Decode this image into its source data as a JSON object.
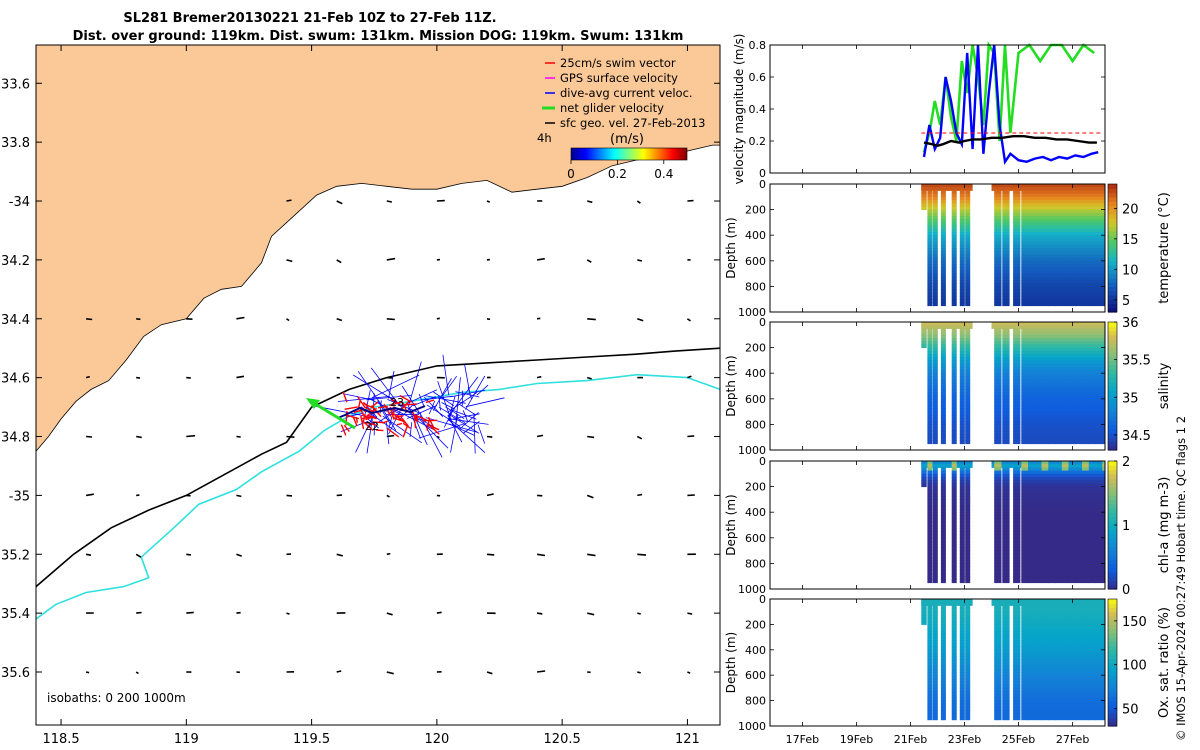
{
  "title_line1": "SL281 Bremer20130221 21-Feb 10Z to 27-Feb 11Z.",
  "title_line2": "Dist. over ground: 119km. Dist. swum: 131km. Mission DOG: 119km. Swum: 131km",
  "copyright": "© IMOS 15-Apr-2024 00:27:49 Hobart time. QC flags 1  2",
  "colors": {
    "land": "#FBC998",
    "isobath_200": "#000000",
    "isobath_1000": "#30E0E0",
    "swim_vector": "#FF0000",
    "gps_velocity": "#FF00FF",
    "dive_avg_current": "#0000FF",
    "net_glider_velocity": "#22DD22",
    "sfc_geo_vel": "#000000"
  },
  "chart_data": [
    {
      "type": "map",
      "xlim": [
        118.4,
        121.13
      ],
      "ylim": [
        35.78,
        33.47
      ],
      "x_ticks": [
        118.5,
        119,
        119.5,
        120,
        120.5,
        121
      ],
      "x_tick_labels": [
        "118.5",
        "119",
        "119.5",
        "120",
        "120.5",
        "121"
      ],
      "y_ticks": [
        33.6,
        33.8,
        34,
        34.2,
        34.4,
        34.6,
        34.8,
        35,
        35.2,
        35.4,
        35.6
      ],
      "y_tick_labels": [
        "33.6",
        "33.8",
        "-34",
        "34.2",
        "34.4",
        "34.6",
        "34.8",
        "-35",
        "35.2",
        "35.4",
        "35.6"
      ],
      "legend": {
        "placement": "top-right",
        "entries": [
          "25cm/s swim vector",
          "GPS surface velocity",
          "dive-avg current veloc.",
          "net glider velocity",
          "sfc geo. vel. 27-Feb-2013"
        ],
        "time_label": "4h",
        "colorbar_title": "(m/s)",
        "colorbar_ticks": [
          0,
          0.2,
          0.4
        ],
        "colorbar_tick_labels": [
          "0",
          "0.2",
          "0.4"
        ],
        "colorbar_range": [
          0,
          0.5
        ]
      },
      "isobath_label": "isobaths: 0   200   1000m",
      "glider_labels": [
        "23",
        "22"
      ],
      "coastline": [
        [
          118.4,
          34.85
        ],
        [
          118.45,
          34.8
        ],
        [
          118.5,
          34.74
        ],
        [
          118.56,
          34.68
        ],
        [
          118.62,
          34.64
        ],
        [
          118.69,
          34.61
        ],
        [
          118.76,
          34.54
        ],
        [
          118.83,
          34.46
        ],
        [
          118.9,
          34.42
        ],
        [
          119.0,
          34.4
        ],
        [
          119.07,
          34.33
        ],
        [
          119.14,
          34.3
        ],
        [
          119.22,
          34.29
        ],
        [
          119.3,
          34.21
        ],
        [
          119.34,
          34.12
        ],
        [
          119.43,
          34.05
        ],
        [
          119.52,
          33.98
        ],
        [
          119.6,
          33.95
        ],
        [
          119.7,
          33.94
        ],
        [
          119.8,
          33.95
        ],
        [
          119.9,
          33.96
        ],
        [
          120.0,
          33.96
        ],
        [
          120.1,
          33.94
        ],
        [
          120.2,
          33.93
        ],
        [
          120.3,
          33.97
        ],
        [
          120.4,
          33.96
        ],
        [
          120.5,
          33.95
        ],
        [
          120.6,
          33.92
        ],
        [
          120.7,
          33.88
        ],
        [
          120.8,
          33.86
        ],
        [
          120.9,
          33.85
        ],
        [
          121.0,
          33.83
        ],
        [
          121.1,
          33.81
        ],
        [
          121.13,
          33.81
        ]
      ],
      "isobath_200": [
        [
          118.4,
          35.31
        ],
        [
          118.55,
          35.2
        ],
        [
          118.7,
          35.11
        ],
        [
          118.85,
          35.05
        ],
        [
          119.0,
          35.0
        ],
        [
          119.15,
          34.93
        ],
        [
          119.3,
          34.86
        ],
        [
          119.4,
          34.82
        ],
        [
          119.5,
          34.7
        ],
        [
          119.65,
          34.64
        ],
        [
          119.8,
          34.6
        ],
        [
          120.0,
          34.56
        ],
        [
          120.2,
          34.55
        ],
        [
          120.4,
          34.54
        ],
        [
          120.6,
          34.53
        ],
        [
          120.8,
          34.52
        ],
        [
          120.95,
          34.51
        ],
        [
          121.13,
          34.5
        ]
      ],
      "isobath_1000": [
        [
          118.4,
          35.42
        ],
        [
          118.48,
          35.37
        ],
        [
          118.6,
          35.33
        ],
        [
          118.75,
          35.31
        ],
        [
          118.85,
          35.28
        ],
        [
          118.82,
          35.21
        ],
        [
          118.95,
          35.11
        ],
        [
          119.05,
          35.03
        ],
        [
          119.2,
          34.98
        ],
        [
          119.3,
          34.92
        ],
        [
          119.45,
          34.85
        ],
        [
          119.55,
          34.78
        ],
        [
          119.65,
          34.73
        ],
        [
          119.75,
          34.7
        ],
        [
          119.9,
          34.68
        ],
        [
          120.1,
          34.65
        ],
        [
          120.25,
          34.64
        ],
        [
          120.4,
          34.62
        ],
        [
          120.6,
          34.61
        ],
        [
          120.8,
          34.59
        ],
        [
          121.0,
          34.6
        ],
        [
          121.13,
          34.64
        ]
      ]
    },
    {
      "type": "line",
      "ylabel": "velocity magnitude (m/s)",
      "ylim": [
        0,
        0.8
      ],
      "y_ticks": [
        0,
        0.2,
        0.4,
        0.6,
        0.8
      ],
      "y_tick_labels": [
        "0",
        "0.2",
        "0.4",
        "0.6",
        "0.8"
      ],
      "series": [
        {
          "x": [
            21.5,
            21.8,
            22.0,
            22.2,
            22.5,
            22.8,
            23.0,
            23.3,
            23.6,
            24.0,
            24.4,
            24.8,
            25.2,
            25.6,
            26.0,
            26.4,
            26.8,
            27.2,
            27.6,
            27.9
          ],
          "values": [
            0.19,
            0.18,
            0.17,
            0.18,
            0.2,
            0.19,
            0.2,
            0.21,
            0.21,
            0.22,
            0.22,
            0.23,
            0.23,
            0.22,
            0.22,
            0.21,
            0.21,
            0.2,
            0.19,
            0.19
          ]
        },
        {
          "x": [
            21.5,
            21.7,
            21.9,
            22.1,
            22.3,
            22.5,
            22.7,
            22.9,
            23.1,
            23.3,
            23.5,
            23.7,
            23.9,
            24.1,
            24.3,
            24.5,
            24.7,
            25.0,
            25.4,
            25.8,
            26.2,
            26.6,
            27.0,
            27.4,
            27.8
          ],
          "values": [
            0.13,
            0.25,
            0.45,
            0.3,
            0.6,
            0.35,
            0.2,
            0.7,
            0.5,
            0.8,
            0.6,
            0.3,
            0.8,
            0.75,
            0.2,
            0.8,
            0.25,
            0.75,
            0.8,
            0.7,
            0.8,
            0.8,
            0.7,
            0.8,
            0.75
          ]
        },
        {
          "x": [
            21.5,
            21.7,
            21.9,
            22.1,
            22.3,
            22.5,
            22.7,
            22.9,
            23.1,
            23.3,
            23.5,
            23.7,
            23.9,
            24.1,
            24.3,
            24.5,
            24.7,
            25.0,
            25.3,
            25.6,
            25.9,
            26.2,
            26.5,
            26.8,
            27.1,
            27.4,
            27.7,
            27.95
          ],
          "values": [
            0.1,
            0.3,
            0.15,
            0.22,
            0.6,
            0.45,
            0.25,
            0.18,
            0.75,
            0.15,
            0.8,
            0.12,
            0.5,
            0.8,
            0.3,
            0.07,
            0.12,
            0.08,
            0.07,
            0.09,
            0.1,
            0.08,
            0.1,
            0.09,
            0.11,
            0.1,
            0.12,
            0.13
          ]
        }
      ]
    },
    {
      "type": "heatmap",
      "ylabel": "Depth (m)",
      "colorbar_label": "temperature (°C)",
      "ylim": [
        0,
        1000
      ],
      "y_ticks": [
        0,
        200,
        400,
        600,
        800,
        1000
      ],
      "y_tick_labels": [
        "0",
        "200",
        "400",
        "600",
        "800",
        "1000"
      ],
      "colorbar_range": [
        3,
        24
      ],
      "colorbar_ticks": [
        5,
        10,
        15,
        20
      ],
      "colorbar_tick_labels": [
        "5",
        "10",
        "15",
        "20"
      ],
      "profile": {
        "depth": [
          0,
          100,
          200,
          300,
          400,
          600,
          800,
          1000
        ],
        "values": [
          23,
          21,
          17,
          14,
          11,
          8,
          6,
          5
        ]
      }
    },
    {
      "type": "heatmap",
      "ylabel": "Depth (m)",
      "colorbar_label": "salinity",
      "ylim": [
        0,
        1000
      ],
      "y_ticks": [
        0,
        200,
        400,
        600,
        800,
        1000
      ],
      "y_tick_labels": [
        "0",
        "200",
        "400",
        "600",
        "800",
        "1000"
      ],
      "colorbar_range": [
        34.3,
        36
      ],
      "colorbar_ticks": [
        34.5,
        35,
        35.5,
        36
      ],
      "colorbar_tick_labels": [
        "34.5",
        "35",
        "35.5",
        "36"
      ],
      "profile": {
        "depth": [
          0,
          100,
          200,
          300,
          400,
          600,
          800,
          1000
        ],
        "values": [
          35.8,
          35.6,
          35.3,
          35.0,
          34.8,
          34.6,
          34.5,
          34.45
        ]
      }
    },
    {
      "type": "heatmap",
      "ylabel": "Depth (m)",
      "colorbar_label": "chl-a (mg m-3)",
      "ylim": [
        0,
        1000
      ],
      "y_ticks": [
        0,
        200,
        400,
        600,
        800,
        1000
      ],
      "y_tick_labels": [
        "0",
        "200",
        "400",
        "600",
        "800",
        "1000"
      ],
      "colorbar_range": [
        0,
        2
      ],
      "colorbar_ticks": [
        0,
        1,
        2
      ],
      "colorbar_tick_labels": [
        "0",
        "1",
        "2"
      ],
      "profile": {
        "depth": [
          0,
          40,
          80,
          120,
          200,
          400,
          1000
        ],
        "values": [
          0.6,
          0.9,
          0.5,
          0.2,
          0.05,
          0.0,
          0.0
        ]
      }
    },
    {
      "type": "heatmap",
      "ylabel": "Depth (m)",
      "colorbar_label": "Ox. sat. ratio (%)",
      "ylim": [
        0,
        1000
      ],
      "y_ticks": [
        0,
        200,
        400,
        600,
        800,
        1000
      ],
      "y_tick_labels": [
        "0",
        "200",
        "400",
        "600",
        "800",
        "1000"
      ],
      "colorbar_range": [
        30,
        175
      ],
      "colorbar_ticks": [
        50,
        100,
        150
      ],
      "colorbar_tick_labels": [
        "50",
        "100",
        "150"
      ],
      "profile": {
        "depth": [
          0,
          100,
          200,
          400,
          600,
          800,
          1000
        ],
        "values": [
          105,
          105,
          100,
          90,
          75,
          62,
          58
        ]
      }
    }
  ],
  "time_axis": {
    "xlim": [
      15.8,
      28.2
    ],
    "x_ticks": [
      17,
      19,
      21,
      23,
      25,
      27
    ],
    "x_tick_labels": [
      "17Feb",
      "19Feb",
      "21Feb",
      "23Feb",
      "25Feb",
      "27Feb"
    ],
    "data_start": 21.4,
    "data_end": 28.2,
    "gap": [
      23.3,
      24.0
    ],
    "shallow_until": 21.6,
    "shallow_depth": 200,
    "dives": [
      21.7,
      21.9,
      22.2,
      22.6,
      22.9,
      23.1,
      24.1,
      24.4,
      24.8,
      25.1,
      25.35,
      25.6,
      25.85,
      26.1,
      26.35,
      26.6,
      26.85,
      27.1,
      27.35,
      27.6,
      27.85,
      28.1
    ]
  }
}
